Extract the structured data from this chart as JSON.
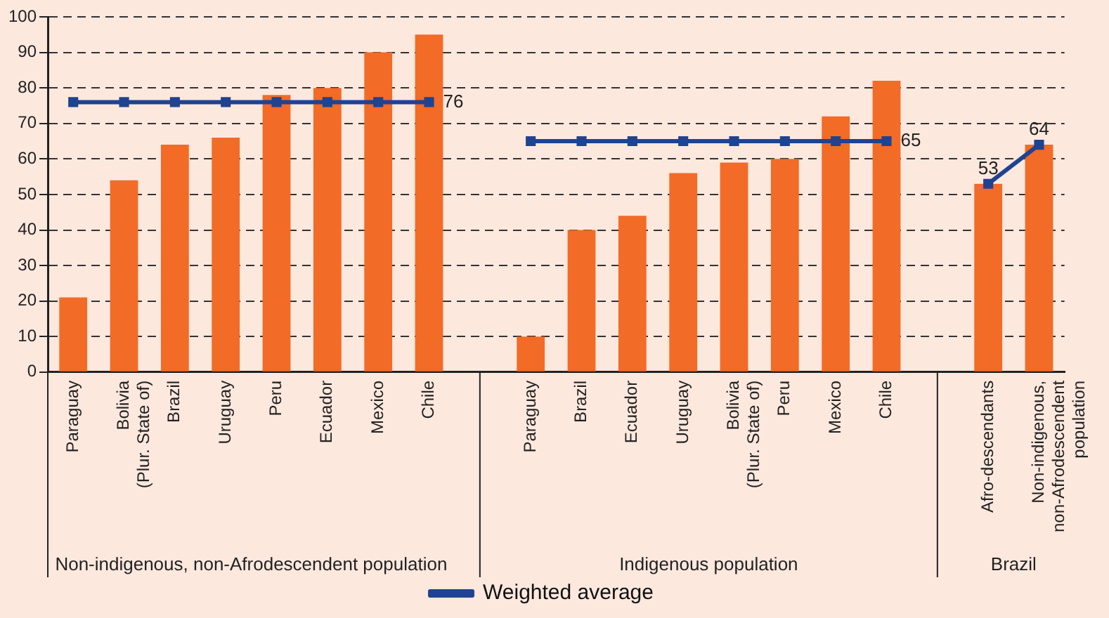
{
  "chart_data": {
    "type": "bar",
    "categories": [
      "Paraguay",
      "Bolivia (Plur. State of)",
      "Brazil",
      "Uruguay",
      "Peru",
      "Ecuador",
      "Mexico",
      "Chile",
      null,
      "Paraguay",
      "Brazil",
      "Ecuador",
      "Uruguay",
      "Bolivia (Plur. State of)",
      "Peru",
      "Mexico",
      "Chile",
      null,
      "Afro-descendants",
      "Non-indigenous, non-Afrodescendent population"
    ],
    "series": [
      {
        "color": "#f26b27",
        "values": [
          21,
          54,
          64,
          66,
          78,
          80,
          90,
          95,
          null,
          10,
          40,
          44,
          56,
          59,
          60,
          72,
          82,
          null,
          53,
          64
        ]
      },
      {
        "type": "line",
        "name": "Weighted average",
        "color": "#1f4391",
        "values": [
          76,
          76,
          76,
          76,
          76,
          76,
          76,
          76,
          null,
          65,
          65,
          65,
          65,
          65,
          65,
          65,
          65,
          null,
          53,
          64
        ],
        "value_labels": [
          null,
          null,
          null,
          null,
          null,
          null,
          null,
          "76",
          null,
          null,
          null,
          null,
          null,
          null,
          null,
          null,
          "65",
          null,
          "53",
          "64"
        ]
      }
    ],
    "annotations": [
      "Non-indigenous, non-Afrodescendent population",
      "Indigenous population",
      "Brazil"
    ],
    "ylim": [
      0,
      100
    ],
    "yticks": [
      0,
      10,
      20,
      30,
      40,
      50,
      60,
      70,
      80,
      90,
      100
    ],
    "grid": "y",
    "legend": "bottom",
    "marker": "square",
    "line_style": "solid"
  }
}
